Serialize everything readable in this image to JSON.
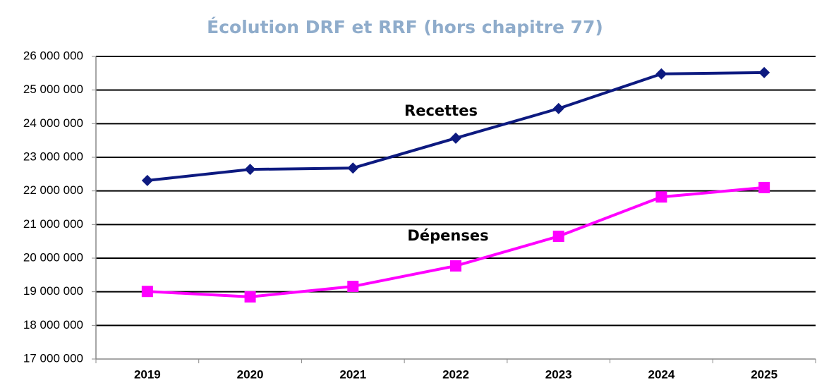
{
  "chart_data": {
    "type": "line",
    "title": "Écolution DRF et RRF (hors chapitre 77)",
    "categories": [
      "2019",
      "2020",
      "2021",
      "2022",
      "2023",
      "2024",
      "2025"
    ],
    "series": [
      {
        "name": "Recettes",
        "color": "#0d1a80",
        "marker": "diamond",
        "values": [
          22310000,
          22640000,
          22680000,
          23570000,
          24450000,
          25480000,
          25520000
        ]
      },
      {
        "name": "Dépenses",
        "color": "#ff00ff",
        "marker": "square",
        "values": [
          19010000,
          18850000,
          19160000,
          19770000,
          20650000,
          21820000,
          22100000
        ]
      }
    ],
    "ylim": [
      17000000,
      26000000
    ],
    "yticks": [
      {
        "value": 17000000,
        "label": "17 000 000"
      },
      {
        "value": 18000000,
        "label": "18 000 000"
      },
      {
        "value": 19000000,
        "label": "19 000 000"
      },
      {
        "value": 20000000,
        "label": "20 000 000"
      },
      {
        "value": 21000000,
        "label": "21 000 000"
      },
      {
        "value": 22000000,
        "label": "22 000 000"
      },
      {
        "value": 23000000,
        "label": "23 000 000"
      },
      {
        "value": 24000000,
        "label": "24 000 000"
      },
      {
        "value": 25000000,
        "label": "25 000 000"
      },
      {
        "value": 26000000,
        "label": "26 000 000"
      }
    ],
    "grid": true
  }
}
